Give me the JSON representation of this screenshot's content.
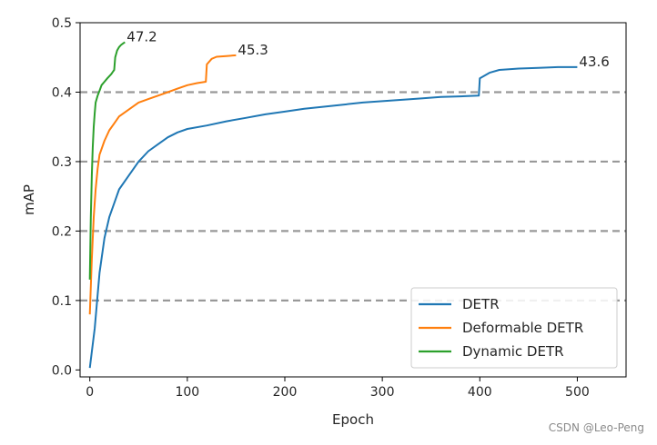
{
  "chart_data": {
    "type": "line",
    "title": "",
    "xlabel": "Epoch",
    "ylabel": "mAP",
    "xlim": [
      -10,
      550
    ],
    "ylim": [
      -0.01,
      0.5
    ],
    "xticks": [
      "0",
      "100",
      "200",
      "300",
      "400",
      "500"
    ],
    "yticks": [
      "0.0",
      "0.1",
      "0.2",
      "0.3",
      "0.4",
      "0.5"
    ],
    "hlines": [
      0.1,
      0.2,
      0.3,
      0.4
    ],
    "legend_position": "lower-right",
    "series": [
      {
        "name": "DETR",
        "color": "#1f77b4",
        "end_label": "43.6",
        "x": [
          0,
          5,
          10,
          15,
          20,
          25,
          30,
          40,
          50,
          60,
          70,
          80,
          90,
          100,
          120,
          140,
          160,
          180,
          200,
          220,
          240,
          260,
          280,
          300,
          320,
          340,
          360,
          380,
          399,
          400,
          410,
          420,
          440,
          460,
          480,
          500
        ],
        "y": [
          0.003,
          0.06,
          0.14,
          0.19,
          0.22,
          0.24,
          0.26,
          0.28,
          0.3,
          0.315,
          0.325,
          0.335,
          0.342,
          0.347,
          0.352,
          0.358,
          0.363,
          0.368,
          0.372,
          0.376,
          0.379,
          0.382,
          0.385,
          0.387,
          0.389,
          0.391,
          0.393,
          0.394,
          0.395,
          0.42,
          0.428,
          0.432,
          0.434,
          0.435,
          0.436,
          0.436
        ]
      },
      {
        "name": "Deformable DETR",
        "color": "#ff7f0e",
        "end_label": "45.3",
        "x": [
          0,
          2,
          4,
          6,
          8,
          10,
          15,
          20,
          25,
          30,
          40,
          50,
          60,
          70,
          80,
          90,
          100,
          110,
          119,
          120,
          125,
          130,
          140,
          150
        ],
        "y": [
          0.08,
          0.16,
          0.22,
          0.26,
          0.29,
          0.31,
          0.33,
          0.345,
          0.355,
          0.365,
          0.375,
          0.385,
          0.39,
          0.395,
          0.4,
          0.405,
          0.41,
          0.413,
          0.415,
          0.44,
          0.448,
          0.451,
          0.452,
          0.453
        ]
      },
      {
        "name": "Dynamic DETR",
        "color": "#2ca02c",
        "end_label": "47.2",
        "x": [
          0,
          1,
          2,
          3,
          4,
          5,
          6,
          8,
          10,
          12,
          15,
          18,
          20,
          22,
          24,
          25,
          26,
          28,
          30,
          32,
          34,
          36
        ],
        "y": [
          0.13,
          0.22,
          0.28,
          0.32,
          0.35,
          0.37,
          0.385,
          0.395,
          0.402,
          0.41,
          0.415,
          0.42,
          0.423,
          0.426,
          0.43,
          0.432,
          0.45,
          0.46,
          0.465,
          0.468,
          0.47,
          0.472
        ]
      }
    ]
  },
  "watermark": "CSDN @Leo-Peng"
}
